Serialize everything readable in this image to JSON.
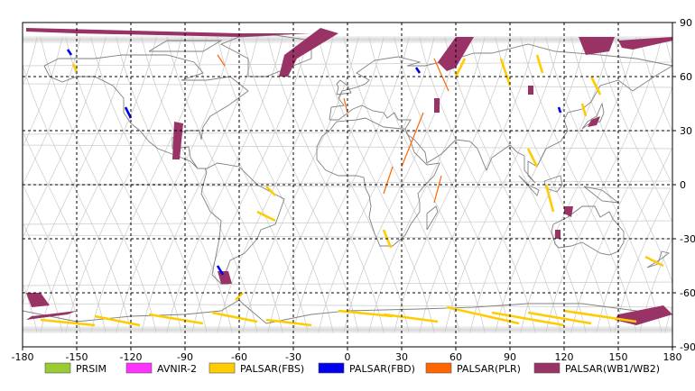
{
  "map": {
    "x_ticks": [
      "-180",
      "-150",
      "-120",
      "-90",
      "-60",
      "-30",
      "0",
      "30",
      "60",
      "90",
      "120",
      "150",
      "180"
    ],
    "y_ticks": [
      "90",
      "60",
      "30",
      "0",
      "-30",
      "-60",
      "-90"
    ],
    "lon_range": [
      -180,
      180
    ],
    "lat_range": [
      -90,
      90
    ],
    "gridlines": "dashed",
    "frame_color": "#000000",
    "coast_color": "#808080",
    "orbit_color": "#c8c8c8"
  },
  "legend": {
    "placement": "bottom",
    "items": [
      {
        "label": "PRSIM",
        "color": "#99cc33"
      },
      {
        "label": "AVNIR-2",
        "color": "#ff33ff"
      },
      {
        "label": "PALSAR(FBS)",
        "color": "#ffcc00"
      },
      {
        "label": "PALSAR(FBD)",
        "color": "#0000ee"
      },
      {
        "label": "PALSAR(PLR)",
        "color": "#ff6600"
      },
      {
        "label": "PALSAR(WB1/WB2)",
        "color": "#993366"
      }
    ]
  },
  "swaths": {
    "wb": [
      [
        [
          -178,
          87
        ],
        [
          -60,
          84
        ],
        [
          -20,
          84
        ],
        [
          -60,
          82
        ],
        [
          -150,
          84
        ],
        [
          -178,
          85
        ]
      ],
      [
        [
          -15,
          87
        ],
        [
          -35,
          72
        ],
        [
          -38,
          60
        ],
        [
          -33,
          60
        ],
        [
          -28,
          70
        ],
        [
          -5,
          84
        ]
      ],
      [
        [
          60,
          82
        ],
        [
          70,
          82
        ],
        [
          60,
          65
        ],
        [
          55,
          63
        ],
        [
          50,
          68
        ]
      ],
      [
        [
          128,
          82
        ],
        [
          148,
          82
        ],
        [
          145,
          74
        ],
        [
          132,
          72
        ]
      ],
      [
        [
          150,
          80
        ],
        [
          180,
          82
        ],
        [
          180,
          80
        ],
        [
          158,
          75
        ],
        [
          152,
          76
        ]
      ],
      [
        [
          -96,
          35
        ],
        [
          -91,
          34
        ],
        [
          -93,
          14
        ],
        [
          -97,
          14
        ]
      ],
      [
        [
          -178,
          -60
        ],
        [
          -170,
          -60
        ],
        [
          -165,
          -67
        ],
        [
          -175,
          -68
        ]
      ],
      [
        [
          -175,
          -73
        ],
        [
          -150,
          -70
        ],
        [
          -155,
          -72
        ],
        [
          -178,
          -75
        ]
      ],
      [
        [
          150,
          -72
        ],
        [
          175,
          -67
        ],
        [
          180,
          -72
        ],
        [
          160,
          -78
        ],
        [
          148,
          -75
        ]
      ],
      [
        [
          -70,
          -55
        ],
        [
          -64,
          -55
        ],
        [
          -66,
          -48
        ],
        [
          -72,
          -48
        ]
      ],
      [
        [
          48,
          48
        ],
        [
          51,
          48
        ],
        [
          51,
          40
        ],
        [
          48,
          40
        ]
      ],
      [
        [
          100,
          55
        ],
        [
          103,
          55
        ],
        [
          103,
          50
        ],
        [
          100,
          50
        ]
      ],
      [
        [
          120,
          -12
        ],
        [
          125,
          -12
        ],
        [
          124,
          -18
        ],
        [
          120,
          -16
        ]
      ],
      [
        [
          135,
          36
        ],
        [
          140,
          38
        ],
        [
          138,
          33
        ],
        [
          133,
          32
        ]
      ],
      [
        [
          115,
          -25
        ],
        [
          118,
          -25
        ],
        [
          118,
          -30
        ],
        [
          115,
          -30
        ]
      ]
    ],
    "fbs": [
      [
        [
          -170,
          -75
        ],
        [
          -140,
          -78
        ]
      ],
      [
        [
          -140,
          -73
        ],
        [
          -115,
          -78
        ]
      ],
      [
        [
          -110,
          -72
        ],
        [
          -80,
          -77
        ]
      ],
      [
        [
          -75,
          -71
        ],
        [
          -50,
          -76
        ]
      ],
      [
        [
          -45,
          -75
        ],
        [
          -20,
          -78
        ]
      ],
      [
        [
          -5,
          -70
        ],
        [
          25,
          -73
        ]
      ],
      [
        [
          20,
          -72
        ],
        [
          50,
          -76
        ]
      ],
      [
        [
          55,
          -68
        ],
        [
          95,
          -77
        ]
      ],
      [
        [
          80,
          -71
        ],
        [
          120,
          -78
        ]
      ],
      [
        [
          100,
          -71
        ],
        [
          135,
          -77
        ]
      ],
      [
        [
          120,
          -70
        ],
        [
          160,
          -76
        ]
      ],
      [
        [
          -152,
          67
        ],
        [
          -150,
          63
        ]
      ],
      [
        [
          65,
          70
        ],
        [
          60,
          60
        ]
      ],
      [
        [
          85,
          70
        ],
        [
          90,
          55
        ]
      ],
      [
        [
          105,
          72
        ],
        [
          108,
          62
        ]
      ],
      [
        [
          135,
          60
        ],
        [
          140,
          50
        ]
      ],
      [
        [
          130,
          45
        ],
        [
          132,
          38
        ]
      ],
      [
        [
          -62,
          -64
        ],
        [
          -58,
          -60
        ]
      ],
      [
        [
          -45,
          -1
        ],
        [
          -40,
          -6
        ]
      ],
      [
        [
          -50,
          -15
        ],
        [
          -40,
          -20
        ]
      ],
      [
        [
          110,
          0
        ],
        [
          114,
          -15
        ]
      ],
      [
        [
          100,
          20
        ],
        [
          105,
          10
        ]
      ],
      [
        [
          20,
          -25
        ],
        [
          24,
          -35
        ]
      ],
      [
        [
          165,
          -40
        ],
        [
          175,
          -45
        ]
      ]
    ],
    "fbd": [
      [
        [
          -155,
          75
        ],
        [
          -153,
          72
        ]
      ],
      [
        [
          -123,
          43
        ],
        [
          -120,
          37
        ]
      ],
      [
        [
          -72,
          -45
        ],
        [
          -69,
          -50
        ]
      ],
      [
        [
          38,
          65
        ],
        [
          40,
          62
        ]
      ],
      [
        [
          117,
          43
        ],
        [
          118,
          40
        ]
      ]
    ],
    "plr": [
      [
        [
          -72,
          72
        ],
        [
          -68,
          66
        ]
      ],
      [
        [
          48,
          70
        ],
        [
          56,
          52
        ]
      ],
      [
        [
          42,
          40
        ],
        [
          30,
          10
        ]
      ],
      [
        [
          52,
          5
        ],
        [
          48,
          -10
        ]
      ],
      [
        [
          25,
          10
        ],
        [
          20,
          -5
        ]
      ],
      [
        [
          -2,
          48
        ],
        [
          0,
          40
        ]
      ]
    ]
  }
}
